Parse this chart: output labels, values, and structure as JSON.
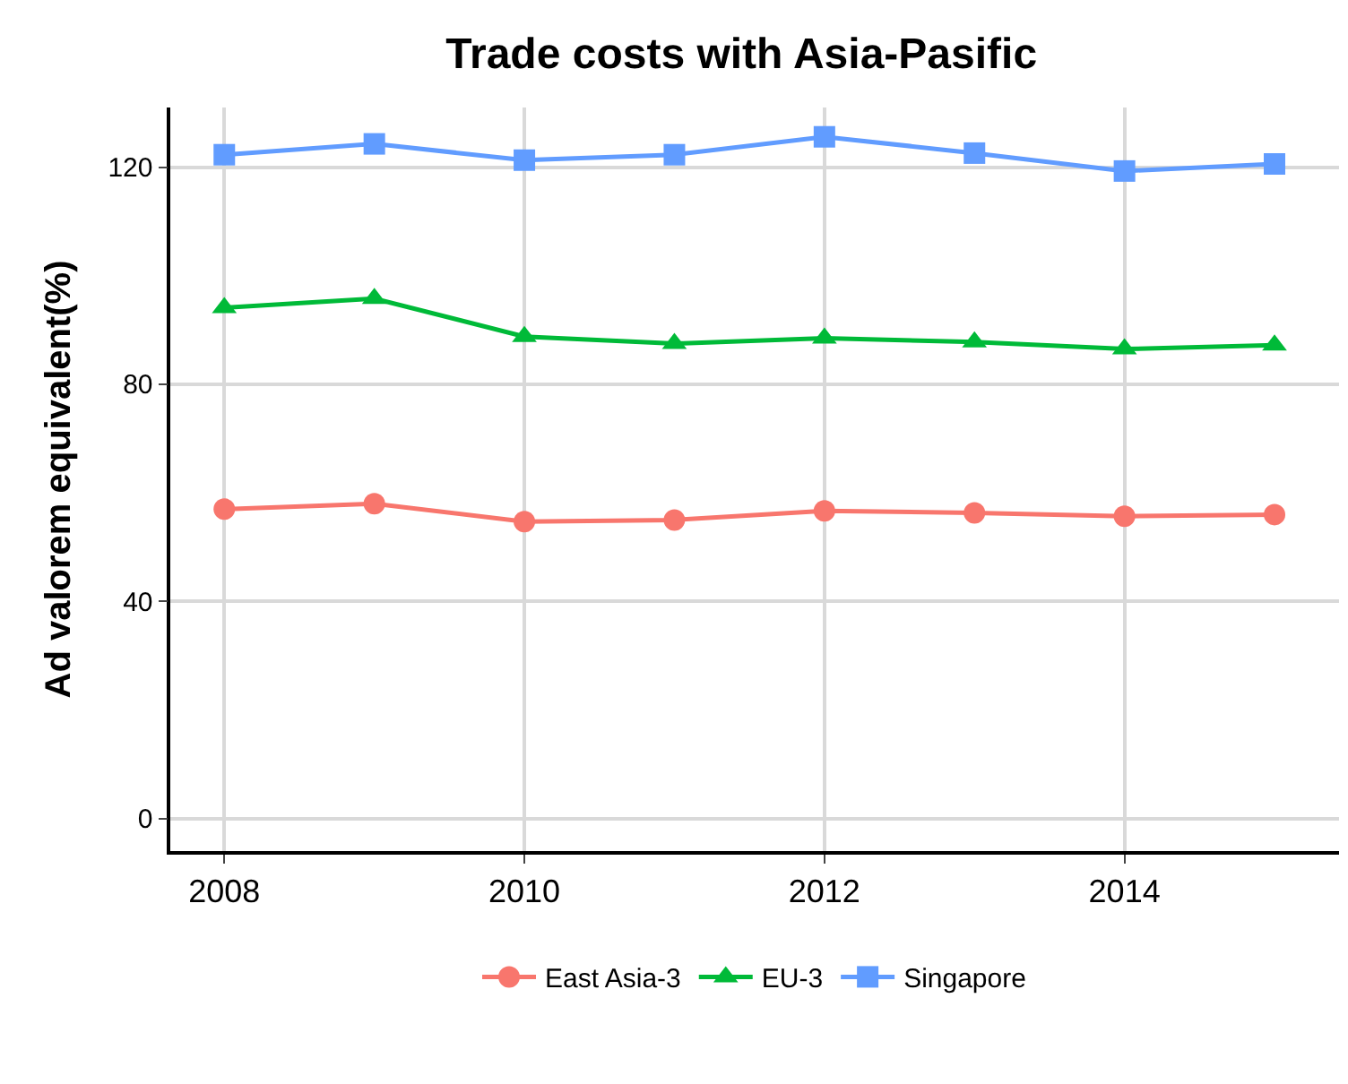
{
  "chart_data": {
    "type": "line",
    "title": "Trade costs with Asia-Pasific",
    "ylabel": "Ad valorem equivalent(%)",
    "x": [
      2008,
      2009,
      2010,
      2011,
      2012,
      2013,
      2014,
      2015
    ],
    "xlim": [
      2007.64,
      2015.43
    ],
    "xticks": [
      2008,
      2010,
      2012,
      2014
    ],
    "ylim": [
      -6,
      131
    ],
    "yticks": [
      0,
      40,
      80,
      120
    ],
    "grid": true,
    "legend": "bottom",
    "series": [
      {
        "name": "East Asia-3",
        "color": "#f8766d",
        "marker": "circle",
        "values": [
          57.0,
          58.0,
          54.7,
          55.0,
          56.7,
          56.3,
          55.7,
          56.0
        ]
      },
      {
        "name": "EU-3",
        "color": "#00ba38",
        "marker": "triangle",
        "values": [
          94.1,
          95.8,
          88.8,
          87.5,
          88.5,
          87.8,
          86.5,
          87.2
        ]
      },
      {
        "name": "Singapore",
        "color": "#619cff",
        "marker": "square",
        "values": [
          122.3,
          124.3,
          121.3,
          122.3,
          125.6,
          122.6,
          119.3,
          120.6
        ]
      }
    ]
  }
}
